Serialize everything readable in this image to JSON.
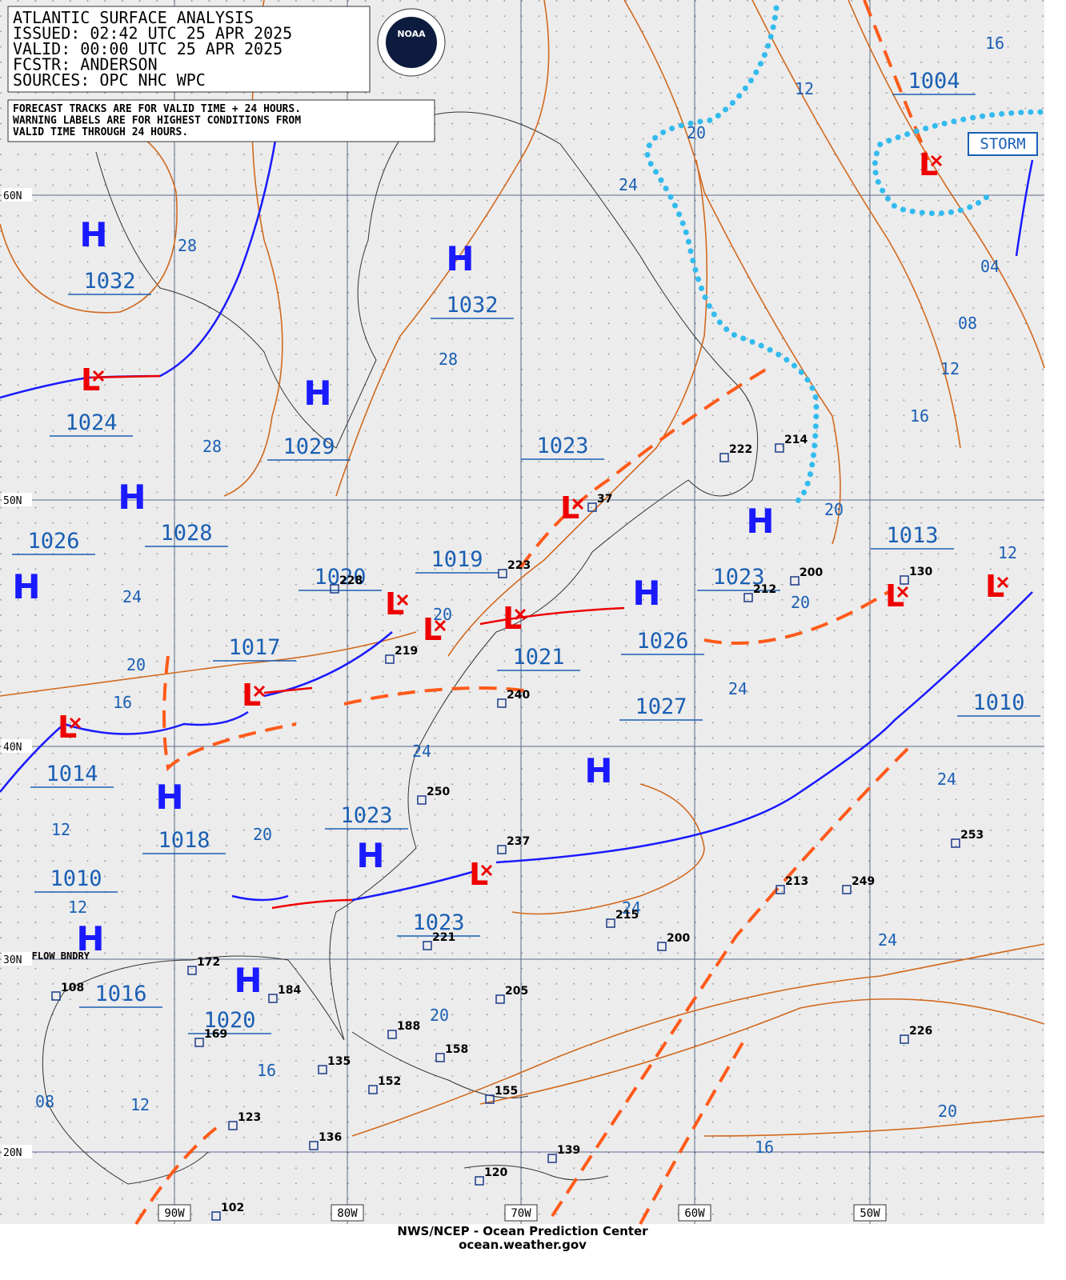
{
  "header": {
    "lines": [
      "ATLANTIC SURFACE ANALYSIS",
      "ISSUED: 02:42 UTC 25 APR 2025",
      "VALID:  00:00 UTC 25 APR 2025",
      "FCSTR:  ANDERSON",
      "SOURCES: OPC NHC WPC"
    ]
  },
  "note": [
    "FORECAST TRACKS ARE FOR VALID TIME + 24 HOURS.",
    "WARNING LABELS ARE FOR HIGHEST CONDITIONS FROM",
    "VALID TIME THROUGH 24 HOURS."
  ],
  "logo": "NOAA",
  "pressures": [
    "1032",
    "1032",
    "1024",
    "1029",
    "1023",
    "1028",
    "1026",
    "1019",
    "1020",
    "1023",
    "1013",
    "1017",
    "1026",
    "1021",
    "1027",
    "1010",
    "1014",
    "1023",
    "1018",
    "1010",
    "1023",
    "1016",
    "1020",
    "1004"
  ],
  "highs": [
    "H",
    "H",
    "H",
    "H",
    "H",
    "H",
    "H",
    "H",
    "H",
    "H",
    "H",
    "H"
  ],
  "lows": [
    "L",
    "L",
    "L",
    "L",
    "L",
    "L",
    "L",
    "L",
    "L",
    "L",
    "L"
  ],
  "isobar_labels": [
    "28",
    "28",
    "28",
    "24",
    "20",
    "12",
    "16",
    "04",
    "08",
    "12",
    "16",
    "20",
    "20",
    "24",
    "20",
    "16",
    "20",
    "24",
    "12",
    "24",
    "24",
    "12",
    "20",
    "12",
    "24",
    "24",
    "20",
    "16",
    "08",
    "12",
    "20",
    "16"
  ],
  "lat_labels": [
    "60N",
    "50N",
    "40N",
    "30N",
    "20N"
  ],
  "lon_labels": [
    "90W",
    "80W",
    "70W",
    "60W",
    "50W"
  ],
  "warning": "STORM",
  "boundary_label": "OUTFLOW BNDRY",
  "stations": [
    "222",
    "214",
    "37",
    "223",
    "228",
    "219",
    "240",
    "250",
    "237",
    "215",
    "200",
    "213",
    "249",
    "253",
    "226",
    "221",
    "205",
    "188",
    "158",
    "135",
    "152",
    "155",
    "172",
    "184",
    "169",
    "123",
    "136",
    "139",
    "120",
    "102",
    "130",
    "200",
    "212",
    "108"
  ],
  "footer": [
    "NWS/NCEP - Ocean Prediction Center",
    "ocean.weather.gov"
  ]
}
